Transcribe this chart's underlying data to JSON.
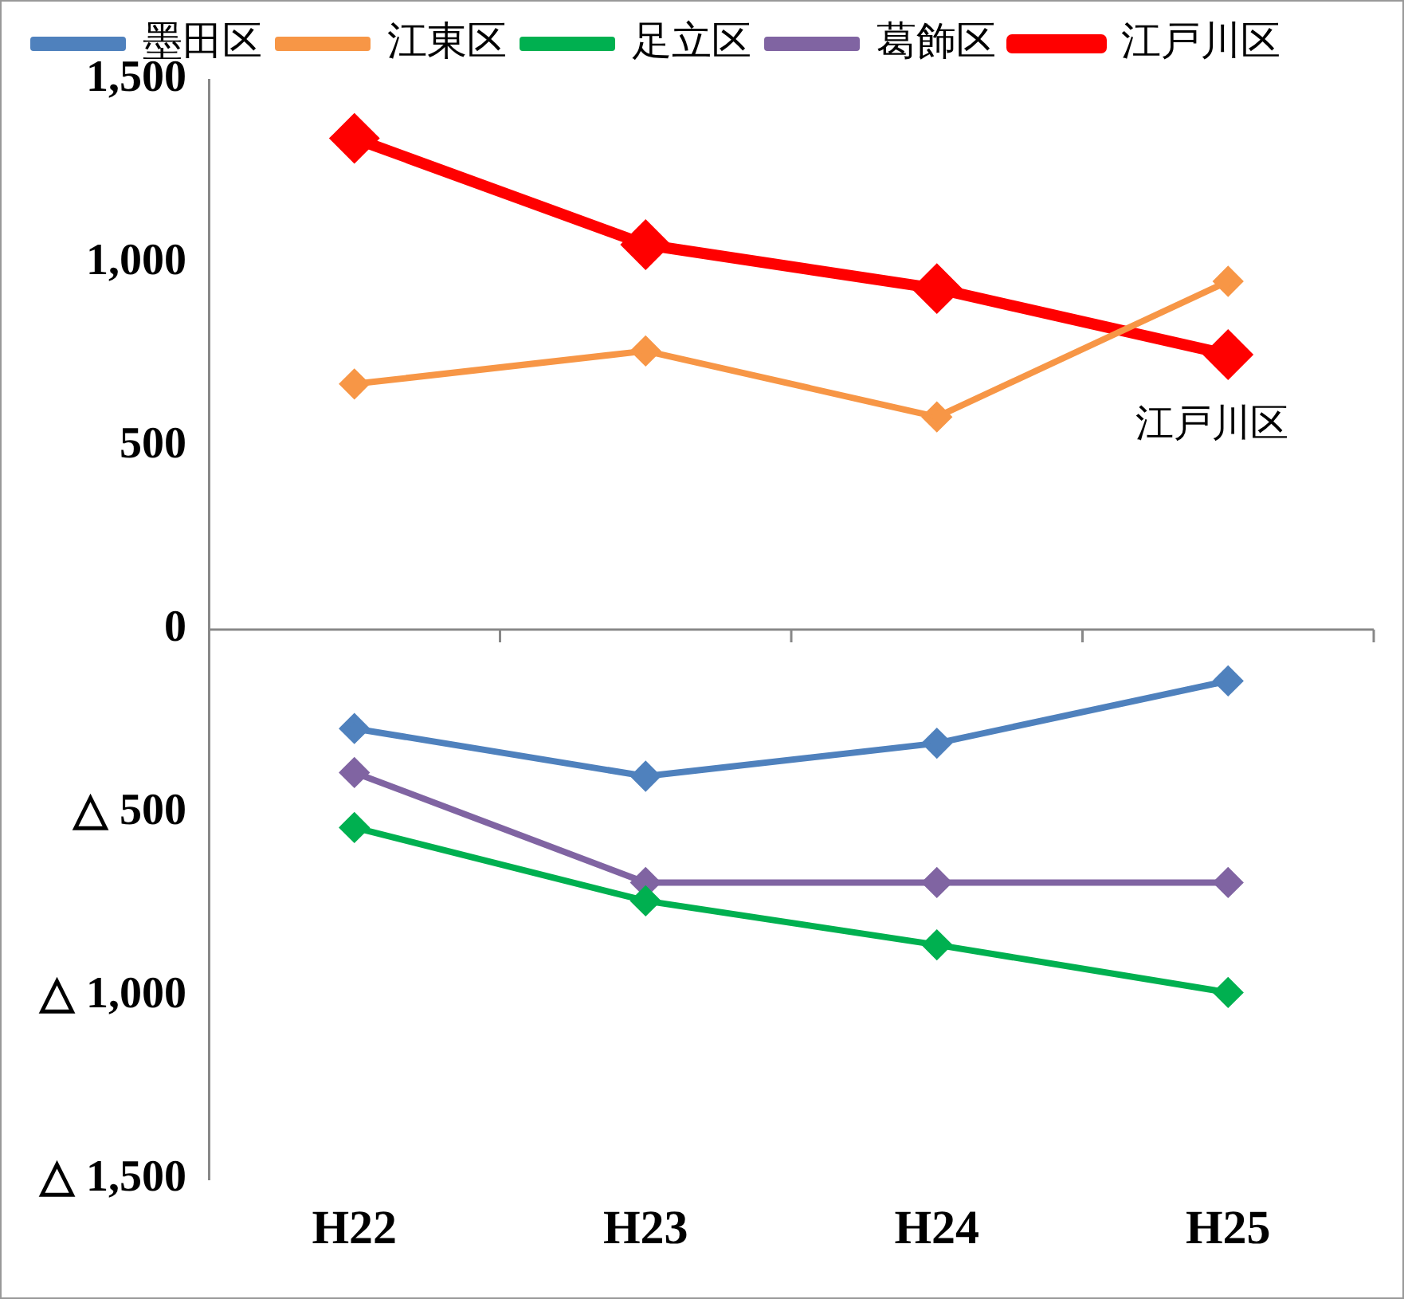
{
  "chart_data": {
    "type": "line",
    "categories": [
      "H22",
      "H23",
      "H24",
      "H25"
    ],
    "series": [
      {
        "name": "墨田区",
        "color": "#4f81bd",
        "values": [
          -270,
          -400,
          -310,
          -140
        ]
      },
      {
        "name": "江東区",
        "color": "#f79646",
        "values": [
          670,
          760,
          580,
          950
        ]
      },
      {
        "name": "足立区",
        "color": "#00b050",
        "values": [
          -540,
          -740,
          -860,
          -990
        ]
      },
      {
        "name": "葛飾区",
        "color": "#8064a2",
        "values": [
          -390,
          -690,
          -690,
          -690
        ]
      },
      {
        "name": "江戸川区",
        "color": "#ff0000",
        "values": [
          1340,
          1050,
          930,
          750
        ]
      }
    ],
    "ylim": [
      -1500,
      1500
    ],
    "yticks": [
      {
        "value": -1500,
        "label": "△ 1,500"
      },
      {
        "value": -1000,
        "label": "△ 1,000"
      },
      {
        "value": -500,
        "label": "△ 500"
      },
      0,
      {
        "value": 500,
        "label": "500"
      },
      {
        "value": 1000,
        "label": "1,000"
      },
      {
        "value": 1500,
        "label": "1,500"
      }
    ],
    "annotations": [
      "江戸川区"
    ],
    "marker": "diamond",
    "legend": "top"
  }
}
